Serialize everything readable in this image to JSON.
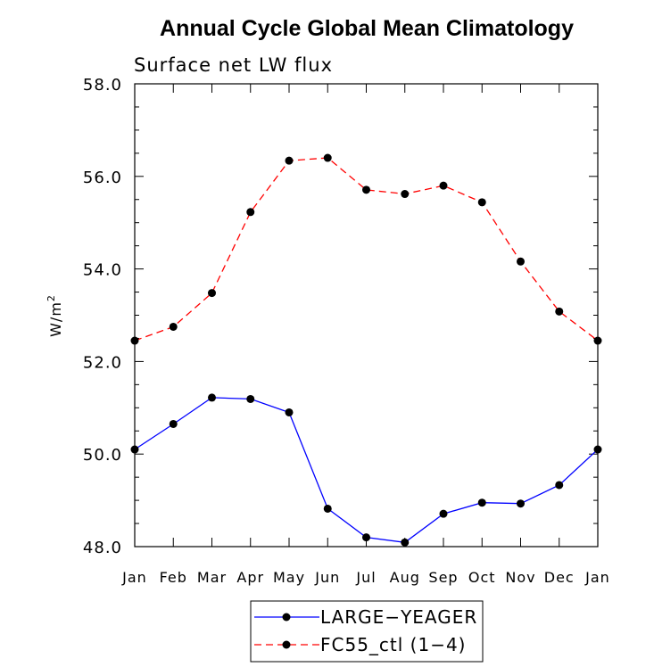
{
  "chart_data": {
    "type": "line",
    "title": "Annual Cycle Global Mean Climatology",
    "subtitle": "Surface net LW flux",
    "ylabel": "W/m",
    "ylabel_superscript": "2",
    "xlabel": "",
    "ylim": [
      48.0,
      58.0
    ],
    "yticks": [
      "48.0",
      "50.0",
      "52.0",
      "54.0",
      "56.0",
      "58.0"
    ],
    "categories": [
      "Jan",
      "Feb",
      "Mar",
      "Apr",
      "May",
      "Jun",
      "Jul",
      "Aug",
      "Sep",
      "Oct",
      "Nov",
      "Dec",
      "Jan"
    ],
    "series": [
      {
        "name": "LARGE−YEAGER",
        "color": "#0000ff",
        "dash": "solid",
        "values": [
          50.1,
          50.65,
          51.22,
          51.19,
          50.9,
          48.82,
          48.2,
          48.09,
          48.71,
          48.95,
          48.93,
          49.33,
          50.1
        ]
      },
      {
        "name": "FC55_ctl (1−4)",
        "color": "#ff0000",
        "dash": "dashed",
        "values": [
          52.45,
          52.75,
          53.48,
          55.23,
          56.34,
          56.4,
          55.71,
          55.62,
          55.8,
          55.44,
          54.16,
          53.08,
          52.45
        ]
      }
    ],
    "legend_position": "bottom-center",
    "grid": false
  }
}
